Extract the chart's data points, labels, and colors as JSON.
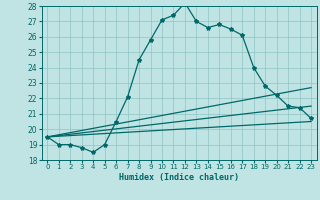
{
  "xlabel": "Humidex (Indice chaleur)",
  "xlim": [
    -0.5,
    23.5
  ],
  "ylim": [
    18,
    28
  ],
  "yticks": [
    18,
    19,
    20,
    21,
    22,
    23,
    24,
    25,
    26,
    27,
    28
  ],
  "xticks": [
    0,
    1,
    2,
    3,
    4,
    5,
    6,
    7,
    8,
    9,
    10,
    11,
    12,
    13,
    14,
    15,
    16,
    17,
    18,
    19,
    20,
    21,
    22,
    23
  ],
  "bg_color": "#c0e4e4",
  "line_color": "#006868",
  "grid_color": "#90c4c4",
  "main_curve_x": [
    0,
    1,
    2,
    3,
    4,
    5,
    6,
    7,
    8,
    9,
    10,
    11,
    12,
    13,
    14,
    15,
    16,
    17,
    18,
    19,
    20,
    21,
    22,
    23
  ],
  "main_curve_y": [
    19.5,
    19.0,
    19.0,
    18.8,
    18.5,
    19.0,
    20.5,
    22.1,
    24.5,
    25.8,
    27.1,
    27.4,
    28.2,
    27.0,
    26.6,
    26.8,
    26.5,
    26.1,
    24.0,
    22.8,
    22.2,
    21.5,
    21.4,
    20.7
  ],
  "line1_x": [
    0,
    23
  ],
  "line1_y": [
    19.5,
    20.5
  ],
  "line2_x": [
    0,
    23
  ],
  "line2_y": [
    19.5,
    21.5
  ],
  "line3_x": [
    0,
    23
  ],
  "line3_y": [
    19.5,
    22.7
  ]
}
